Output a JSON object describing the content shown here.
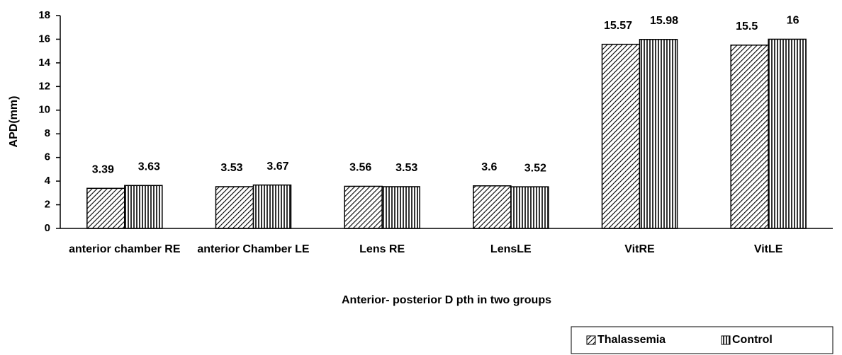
{
  "chart_data": {
    "type": "bar",
    "y_label": "APD(mm)",
    "x_label": "Anterior- posterior D pth in two groups",
    "categories": [
      "anterior chamber RE",
      "anterior Chamber LE",
      "Lens RE",
      "LensLE",
      "VitRE",
      "VitLE"
    ],
    "series": [
      {
        "name": "Thalassemia",
        "color": "#000000",
        "values": [
          3.39,
          3.53,
          3.56,
          3.6,
          15.57,
          15.5
        ]
      },
      {
        "name": "Control",
        "color": "#000000",
        "values": [
          3.63,
          3.67,
          3.53,
          3.52,
          15.98,
          16
        ]
      }
    ],
    "ylim": [
      0,
      18
    ],
    "yticks": [
      0,
      2,
      4,
      6,
      8,
      10,
      12,
      14,
      16,
      18
    ],
    "legend": "bottom-right"
  }
}
